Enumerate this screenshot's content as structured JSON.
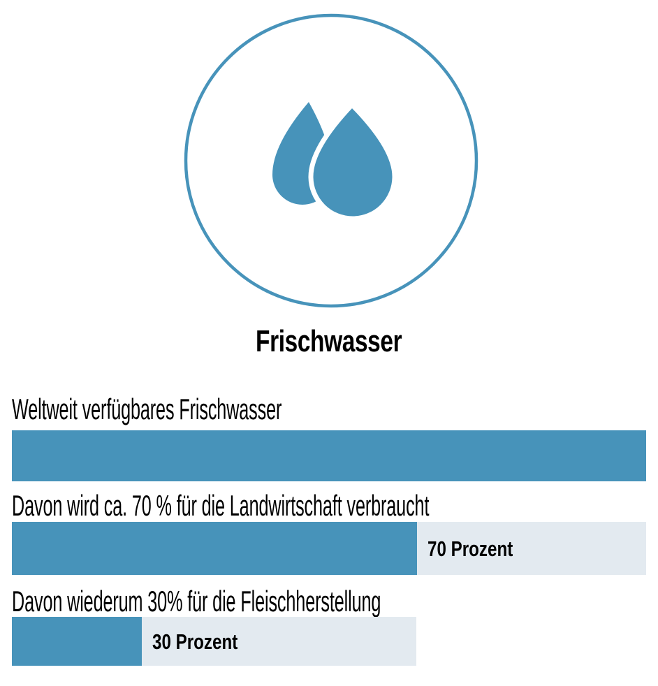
{
  "title": "Frischwasser",
  "colors": {
    "blue": "#4793BA",
    "track": "#E3EAF0",
    "text": "#000000",
    "background": "#ffffff"
  },
  "rows": [
    {
      "label": "Weltweit verfügbares Frischwasser",
      "value_label": "",
      "track_pct": 100,
      "fill_pct": 100
    },
    {
      "label": "Davon wird ca. 70 % für die Landwirtschaft verbraucht",
      "value_label": "70 Prozent",
      "track_pct": 100,
      "fill_pct": 63.9
    },
    {
      "label": "Davon wiederum 30% für die Fleischherstellung",
      "value_label": "30 Prozent",
      "track_pct": 63.8,
      "fill_pct": 32.1
    }
  ],
  "chart_data": {
    "type": "bar",
    "orientation": "horizontal",
    "title": "Frischwasser",
    "categories": [
      "Weltweit verfügbares Frischwasser",
      "Davon wird ca. 70 % für die Landwirtschaft verbraucht",
      "Davon wiederum 30% für die Fleischherstellung"
    ],
    "values": [
      100,
      70,
      30
    ],
    "unit": "Prozent",
    "legend": "off",
    "grid": "off",
    "note": "nested bars: 70% of total freshwater, 30% of that 70%"
  },
  "icon": {
    "name": "water-drops",
    "semantic": "two overlapping water drops inside a circle outline"
  }
}
